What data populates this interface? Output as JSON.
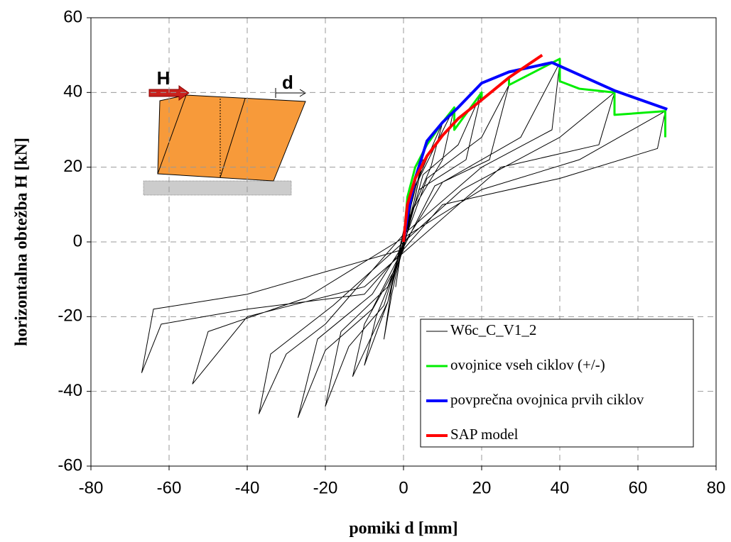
{
  "chart_data": {
    "type": "line",
    "x_label": "pomiki d [mm]",
    "y_label": "horizontalna obtežba H [kN]",
    "annotations": [
      "H",
      "d"
    ],
    "xlim": [
      -80,
      80
    ],
    "xticks": [
      -80,
      -60,
      -40,
      -20,
      0,
      20,
      40,
      60,
      80
    ],
    "ylim": [
      -60,
      60
    ],
    "yticks": [
      -60,
      -40,
      -20,
      0,
      20,
      40,
      60
    ],
    "grid": true,
    "legend": "lower right",
    "series": [
      {
        "name": "W6c_C_V1_2",
        "color": "#000000",
        "linewidth": 1,
        "x": [
          0,
          1,
          2,
          1,
          -1,
          -2,
          -1,
          0,
          2,
          5,
          3,
          0,
          -3,
          -5,
          -3,
          0,
          3,
          10,
          7,
          0,
          -4,
          -10,
          -7,
          0,
          4,
          13,
          10,
          2,
          -4,
          -13,
          -10,
          -1,
          5,
          14,
          20,
          16,
          4,
          -5,
          -14,
          -20,
          -16,
          -4,
          6,
          20,
          27,
          22,
          8,
          -8,
          -20,
          -27,
          -22,
          -8,
          10,
          30,
          40,
          38,
          20,
          0,
          -20,
          -30,
          -37,
          -34,
          -18,
          15,
          40,
          54,
          50,
          25,
          -10,
          -40,
          -54,
          -50,
          -25,
          20,
          45,
          67,
          65,
          40,
          10,
          -10,
          -40,
          -62,
          -67,
          -64,
          -40,
          0
        ],
        "values": [
          0,
          5,
          10,
          4,
          -5,
          -12,
          -5,
          0,
          10,
          22,
          12,
          0,
          -14,
          -26,
          -12,
          2,
          15,
          32,
          20,
          3,
          -16,
          -33,
          -20,
          -2,
          17,
          36,
          22,
          8,
          -16,
          -36,
          -22,
          -5,
          18,
          26,
          40,
          22,
          14,
          -17,
          -28,
          -44,
          -24,
          -12,
          17,
          28,
          42,
          22,
          15,
          -18,
          -29,
          -47,
          -26,
          -14,
          16,
          28,
          48,
          30,
          20,
          2,
          -22,
          -30,
          -46,
          -30,
          -17,
          14,
          28,
          40,
          26,
          20,
          -12,
          -20,
          -38,
          -24,
          -15,
          14,
          22,
          35,
          25,
          17,
          10,
          -14,
          -18,
          -22,
          -35,
          -18,
          -14,
          -2
        ]
      },
      {
        "name": "ovojnice vseh ciklov (+/-)",
        "color": "#00ee00",
        "linewidth": 3,
        "x": [
          0,
          1,
          3,
          6,
          10,
          13,
          13,
          20,
          20,
          27,
          27,
          40,
          40,
          45,
          54,
          54,
          67,
          67
        ],
        "values": [
          0,
          12,
          20,
          26,
          32,
          36,
          30,
          40,
          38,
          44,
          42,
          49,
          43,
          41,
          40,
          34,
          35,
          28
        ]
      },
      {
        "name": "povprečna ovojnica prvih ciklov",
        "color": "#0000ff",
        "linewidth": 4,
        "x": [
          0,
          1,
          3,
          6,
          10,
          14,
          20,
          27,
          38,
          54,
          67.5
        ],
        "values": [
          0,
          7,
          17,
          27,
          32,
          36,
          42.5,
          45.5,
          48,
          40.5,
          35.5
        ]
      },
      {
        "name": "SAP model",
        "color": "#ff0000",
        "linewidth": 4,
        "x": [
          0,
          1,
          3,
          6,
          10,
          14,
          20,
          27,
          35.5
        ],
        "values": [
          0,
          10,
          17,
          23,
          28.5,
          33,
          38,
          44,
          50
        ]
      }
    ]
  }
}
